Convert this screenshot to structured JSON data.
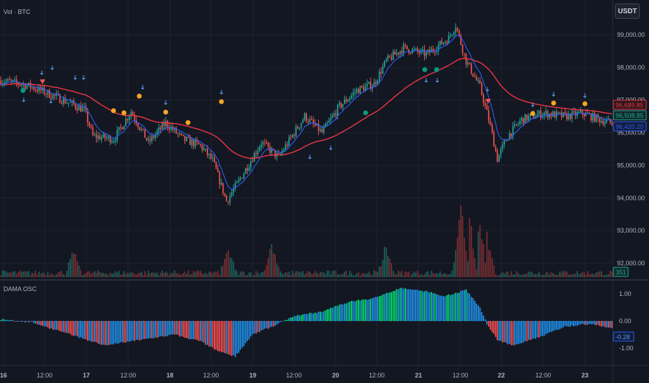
{
  "main_pane": {
    "title": "Vol · BTC",
    "currency_button": "USDT",
    "price_ticks": [
      "99,000.00",
      "98,000.00",
      "97,000.00",
      "96,000.00",
      "95,000.00",
      "94,000.00",
      "93,000.00",
      "92,000.00"
    ],
    "price_tick_values": [
      99000,
      98000,
      97000,
      96000,
      95000,
      94000,
      93000,
      92000
    ],
    "badges": [
      {
        "label": "96,689.85",
        "value": 96689.85,
        "color": "#f23645",
        "fill": "#2a1619"
      },
      {
        "label": "96,508.85",
        "value": 96508.85,
        "color": "#26a69a",
        "fill": "#0f2a29"
      },
      {
        "label": "96,420.20",
        "value": 96420.2,
        "color": "#2962ff",
        "fill": "#121b38"
      },
      {
        "label": "351",
        "value": null,
        "color": "#26a69a",
        "fill": "#0f2a29"
      }
    ]
  },
  "osc_pane": {
    "title": "DAMA OSC",
    "ticks": [
      "1.00",
      "0.00",
      "-1.00"
    ],
    "tick_values": [
      1,
      0,
      -1
    ],
    "badge": {
      "label": "-0.28",
      "value": -0.28,
      "color": "#2962ff"
    }
  },
  "time_axis": {
    "labels": [
      "16",
      "12:00",
      "17",
      "12:00",
      "18",
      "12:00",
      "19",
      "12:00",
      "20",
      "12:00",
      "21",
      "12:00",
      "22",
      "12:00",
      "23"
    ],
    "bold": [
      true,
      false,
      true,
      false,
      true,
      false,
      true,
      false,
      true,
      false,
      true,
      false,
      true,
      false,
      true
    ]
  },
  "colors": {
    "up": "#26a69a",
    "down": "#ef5350",
    "ma_slow": "#f23645",
    "ma_fast": "#2962ff",
    "signal_orange": "#f5a623",
    "signal_green": "#089981",
    "osc_up": "#00e676",
    "osc_down": "#ff5252",
    "osc_blue": "#2196f3"
  },
  "chart_data": {
    "type": "candlestick",
    "price_range": [
      91700,
      99550
    ],
    "key_closes": [
      [
        0,
        97600
      ],
      [
        15,
        97450
      ],
      [
        25,
        97250
      ],
      [
        40,
        96900
      ],
      [
        48,
        96700
      ],
      [
        53,
        95900
      ],
      [
        65,
        95800
      ],
      [
        75,
        96650
      ],
      [
        85,
        95700
      ],
      [
        95,
        96300
      ],
      [
        105,
        95800
      ],
      [
        115,
        95600
      ],
      [
        122,
        95150
      ],
      [
        130,
        93900
      ],
      [
        138,
        94600
      ],
      [
        150,
        95700
      ],
      [
        160,
        95250
      ],
      [
        175,
        96500
      ],
      [
        185,
        96000
      ],
      [
        195,
        96800
      ],
      [
        205,
        97300
      ],
      [
        215,
        97500
      ],
      [
        222,
        98200
      ],
      [
        232,
        98600
      ],
      [
        245,
        98400
      ],
      [
        258,
        98900
      ],
      [
        262,
        99300
      ],
      [
        268,
        98200
      ],
      [
        276,
        97400
      ],
      [
        282,
        96200
      ],
      [
        286,
        95200
      ],
      [
        292,
        95900
      ],
      [
        300,
        96400
      ],
      [
        312,
        96600
      ],
      [
        325,
        96500
      ],
      [
        335,
        96600
      ],
      [
        345,
        96400
      ],
      [
        352,
        96300
      ]
    ],
    "volume_spikes": [
      [
        265,
        820
      ],
      [
        270,
        680
      ],
      [
        276,
        600
      ],
      [
        280,
        520
      ],
      [
        222,
        340
      ],
      [
        156,
        380
      ],
      [
        131,
        310
      ],
      [
        42,
        270
      ]
    ],
    "osc_range": [
      -1.45,
      1.4
    ],
    "osc_key": [
      [
        0,
        0.05
      ],
      [
        18,
        -0.05
      ],
      [
        30,
        -0.3
      ],
      [
        45,
        -0.6
      ],
      [
        60,
        -0.9
      ],
      [
        80,
        -0.7
      ],
      [
        100,
        -0.5
      ],
      [
        115,
        -0.75
      ],
      [
        125,
        -1.1
      ],
      [
        135,
        -1.3
      ],
      [
        145,
        -0.5
      ],
      [
        158,
        -0.15
      ],
      [
        170,
        0.2
      ],
      [
        185,
        0.35
      ],
      [
        200,
        0.7
      ],
      [
        215,
        0.85
      ],
      [
        230,
        1.2
      ],
      [
        245,
        1.1
      ],
      [
        255,
        0.9
      ],
      [
        268,
        1.15
      ],
      [
        276,
        0.5
      ],
      [
        280,
        -0.1
      ],
      [
        286,
        -0.7
      ],
      [
        295,
        -0.9
      ],
      [
        310,
        -0.6
      ],
      [
        325,
        -0.2
      ],
      [
        340,
        -0.1
      ],
      [
        352,
        -0.28
      ]
    ]
  }
}
